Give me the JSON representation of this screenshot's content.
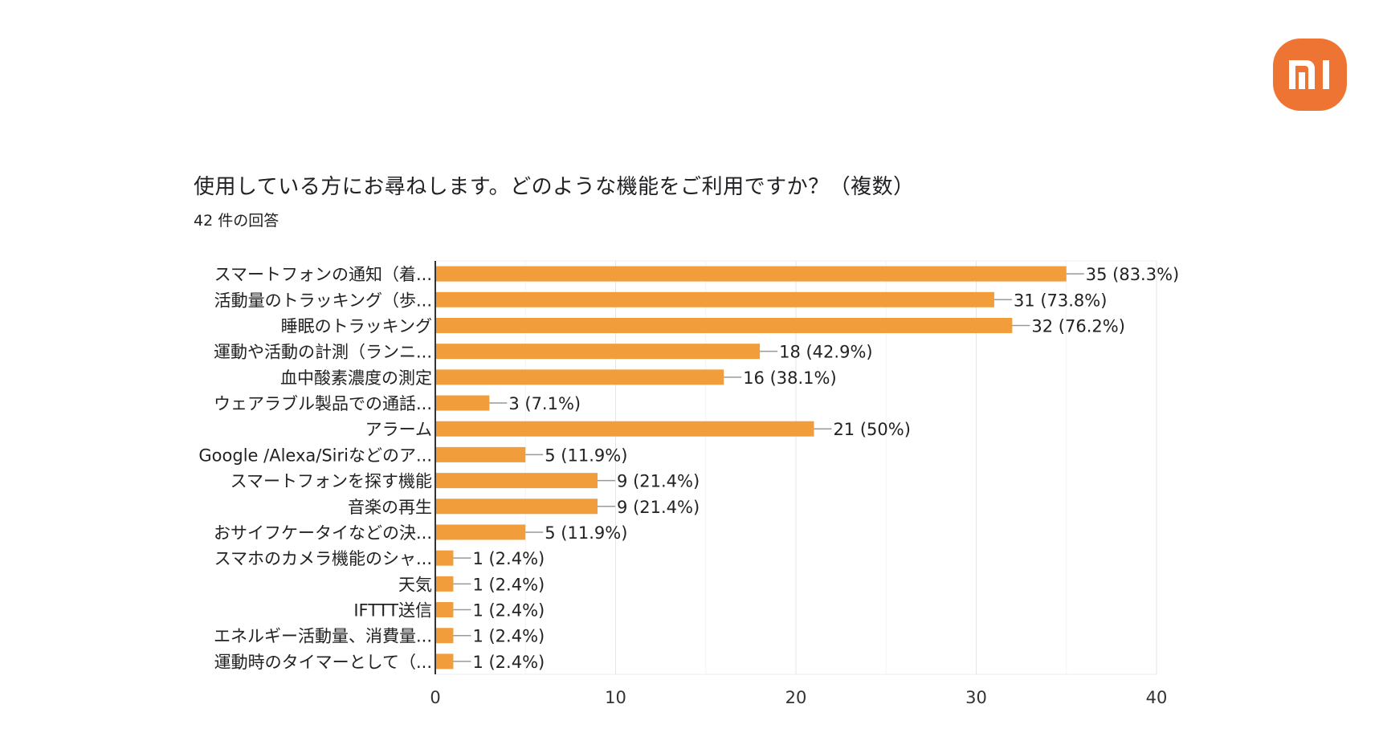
{
  "brand": {
    "logo_text": "mi",
    "logo_color": "#EE7433"
  },
  "chart_data": {
    "type": "bar",
    "orientation": "horizontal",
    "title": "使用している方にお尋ねします。どのような機能をご利用ですか？（複数）",
    "subtitle": "42 件の回答",
    "categories": [
      "スマートフォンの通知（着...",
      "活動量のトラッキング（歩...",
      "睡眠のトラッキング",
      "運動や活動の計測（ランニ...",
      "血中酸素濃度の測定",
      "ウェアラブル製品での通話...",
      "アラーム",
      "Google /Alexa/Siriなどのア...",
      "スマートフォンを探す機能",
      "音楽の再生",
      "おサイフケータイなどの決...",
      "スマホのカメラ機能のシャ...",
      "天気",
      "IFTTT送信",
      "エネルギー活動量、消費量...",
      "運動時のタイマーとして（..."
    ],
    "values": [
      35,
      31,
      32,
      18,
      16,
      3,
      21,
      5,
      9,
      9,
      5,
      1,
      1,
      1,
      1,
      1
    ],
    "value_labels": [
      "35 (83.3%)",
      "31 (73.8%)",
      "32 (76.2%)",
      "18 (42.9%)",
      "16 (38.1%)",
      "3 (7.1%)",
      "21 (50%)",
      "5 (11.9%)",
      "9 (21.4%)",
      "9 (21.4%)",
      "5 (11.9%)",
      "1 (2.4%)",
      "1 (2.4%)",
      "1 (2.4%)",
      "1 (2.4%)",
      "1 (2.4%)"
    ],
    "xlim": [
      0,
      40
    ],
    "xticks": [
      0,
      10,
      20,
      30,
      40
    ],
    "minor_gridlines": [
      5,
      15,
      25,
      35
    ],
    "grid": true,
    "bar_color": "#F19D3B",
    "xlabel": "",
    "ylabel": ""
  }
}
